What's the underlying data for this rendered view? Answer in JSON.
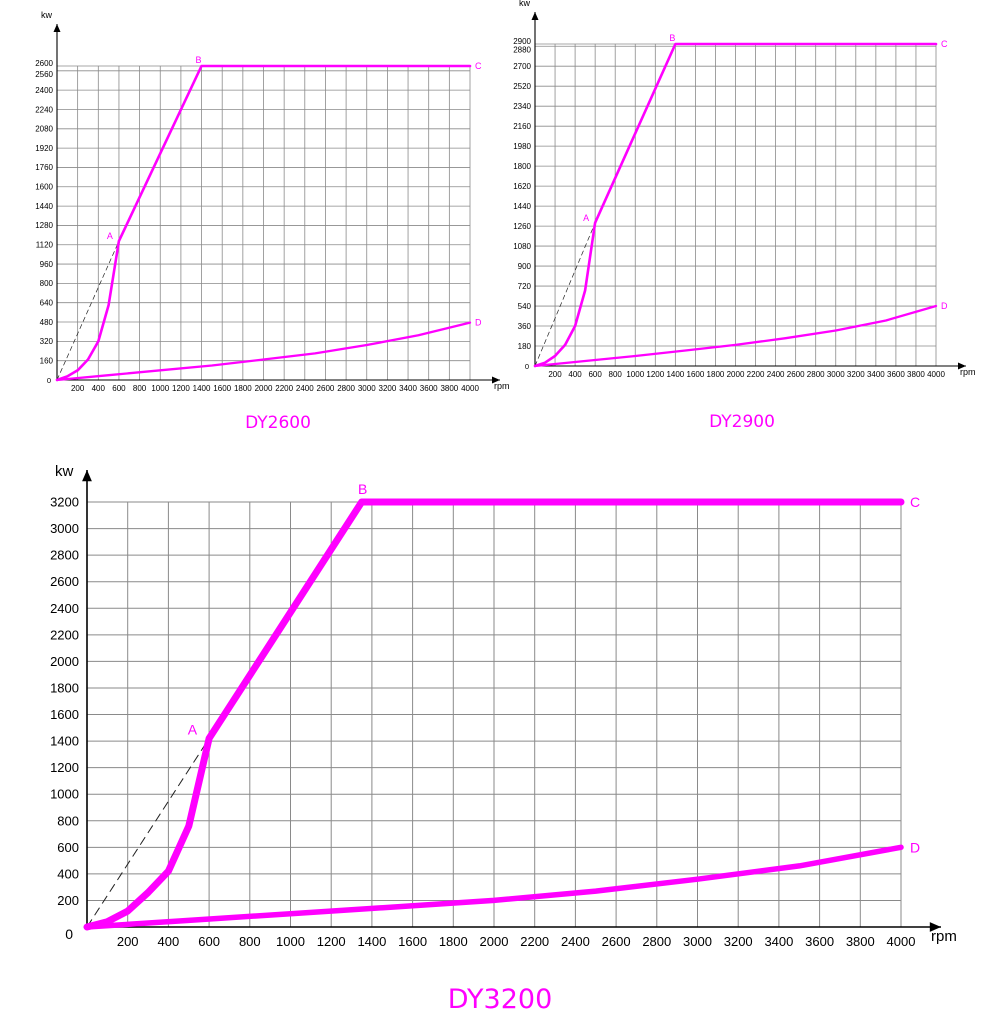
{
  "curve_color": "#ff00ff",
  "chart_data": [
    {
      "type": "line",
      "title": "DY2600",
      "xlabel": "rpm",
      "ylabel": "kw",
      "xlim": [
        0,
        4000
      ],
      "ylim": [
        0,
        2600
      ],
      "x_ticks": [
        200,
        400,
        600,
        800,
        1000,
        1200,
        1400,
        1600,
        1800,
        2000,
        2200,
        2400,
        2600,
        2800,
        3000,
        3200,
        3400,
        3600,
        3800,
        4000
      ],
      "y_ticks": [
        160,
        320,
        480,
        640,
        800,
        960,
        1120,
        1280,
        1440,
        1600,
        1760,
        1920,
        2080,
        2240,
        2400,
        2560,
        2600
      ],
      "origin_label": "0",
      "grid": true,
      "series": [
        {
          "x": [
            0,
            100,
            200,
            300,
            400,
            500,
            600,
            1400,
            4000
          ],
          "y": [
            0,
            30,
            80,
            170,
            320,
            620,
            1150,
            2600,
            2600
          ]
        },
        {
          "x": [
            0,
            500,
            1000,
            1500,
            2000,
            2500,
            3000,
            3500,
            4000
          ],
          "y": [
            0,
            40,
            80,
            120,
            170,
            220,
            290,
            370,
            475
          ]
        }
      ],
      "dashed_line": {
        "x": [
          0,
          600
        ],
        "y": [
          0,
          1150
        ]
      },
      "points": [
        {
          "label": "A",
          "x": 600,
          "y": 1150
        },
        {
          "label": "B",
          "x": 1400,
          "y": 2600
        },
        {
          "label": "C",
          "x": 4000,
          "y": 2600
        },
        {
          "label": "D",
          "x": 4000,
          "y": 475
        }
      ]
    },
    {
      "type": "line",
      "title": "DY2900",
      "xlabel": "rpm",
      "ylabel": "kw",
      "xlim": [
        0,
        4000
      ],
      "ylim": [
        0,
        2900
      ],
      "x_ticks": [
        200,
        400,
        600,
        800,
        1000,
        1200,
        1400,
        1600,
        1800,
        2000,
        2200,
        2400,
        2600,
        2800,
        3000,
        3200,
        3400,
        3600,
        3800,
        4000
      ],
      "y_ticks": [
        180,
        360,
        540,
        720,
        900,
        1080,
        1260,
        1440,
        1620,
        1800,
        1980,
        2160,
        2340,
        2520,
        2700,
        2880,
        2900
      ],
      "origin_label": "0",
      "grid": true,
      "series": [
        {
          "x": [
            0,
            100,
            200,
            300,
            400,
            500,
            600,
            1400,
            4000
          ],
          "y": [
            0,
            30,
            90,
            190,
            360,
            680,
            1290,
            2900,
            2900
          ]
        },
        {
          "x": [
            0,
            500,
            1000,
            1500,
            2000,
            2500,
            3000,
            3500,
            4000
          ],
          "y": [
            0,
            45,
            90,
            140,
            190,
            250,
            320,
            410,
            540
          ]
        }
      ],
      "dashed_line": {
        "x": [
          0,
          600
        ],
        "y": [
          0,
          1290
        ]
      },
      "points": [
        {
          "label": "A",
          "x": 600,
          "y": 1290
        },
        {
          "label": "B",
          "x": 1400,
          "y": 2900
        },
        {
          "label": "C",
          "x": 4000,
          "y": 2900
        },
        {
          "label": "D",
          "x": 4000,
          "y": 540
        }
      ]
    },
    {
      "type": "line",
      "title": "DY3200",
      "xlabel": "rpm",
      "ylabel": "kw",
      "xlim": [
        0,
        4000
      ],
      "ylim": [
        0,
        3200
      ],
      "x_ticks": [
        200,
        400,
        600,
        800,
        1000,
        1200,
        1400,
        1600,
        1800,
        2000,
        2200,
        2400,
        2600,
        2800,
        3000,
        3200,
        3400,
        3600,
        3800,
        4000
      ],
      "y_ticks": [
        200,
        400,
        600,
        800,
        1000,
        1200,
        1400,
        1600,
        1800,
        2000,
        2200,
        2400,
        2600,
        2800,
        3000,
        3200
      ],
      "origin_label": "0",
      "grid": true,
      "series": [
        {
          "x": [
            0,
            100,
            200,
            300,
            400,
            500,
            600,
            1350,
            4000
          ],
          "y": [
            0,
            40,
            120,
            260,
            420,
            760,
            1420,
            3200,
            3200
          ]
        },
        {
          "x": [
            0,
            500,
            1000,
            1500,
            2000,
            2500,
            3000,
            3500,
            4000
          ],
          "y": [
            0,
            50,
            100,
            150,
            200,
            270,
            360,
            460,
            600
          ]
        }
      ],
      "dashed_line": {
        "x": [
          0,
          600
        ],
        "y": [
          0,
          1420
        ]
      },
      "points": [
        {
          "label": "A",
          "x": 600,
          "y": 1420
        },
        {
          "label": "B",
          "x": 1350,
          "y": 3200
        },
        {
          "label": "C",
          "x": 4000,
          "y": 3200
        },
        {
          "label": "D",
          "x": 4000,
          "y": 600
        }
      ]
    }
  ]
}
